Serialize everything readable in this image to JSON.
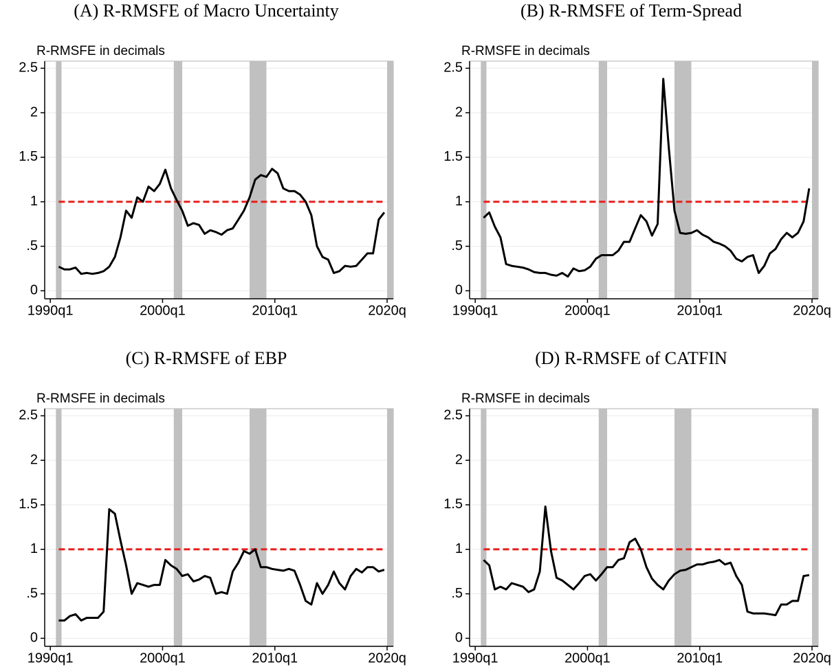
{
  "chart_data": [
    {
      "type": "line",
      "title": "(A) R-RMSFE of Macro Uncertainty",
      "ylabel": "R-RMSFE in decimals",
      "x": [
        1990.75,
        1991.25,
        1991.75,
        1992.25,
        1992.75,
        1993.25,
        1993.75,
        1994.25,
        1994.75,
        1995.25,
        1995.75,
        1996.25,
        1996.75,
        1997.25,
        1997.75,
        1998.25,
        1998.75,
        1999.25,
        1999.75,
        2000.25,
        2000.75,
        2001.25,
        2001.75,
        2002.25,
        2002.75,
        2003.25,
        2003.75,
        2004.25,
        2004.75,
        2005.25,
        2005.75,
        2006.25,
        2006.75,
        2007.25,
        2007.75,
        2008.25,
        2008.75,
        2009.25,
        2009.75,
        2010.25,
        2010.75,
        2011.25,
        2011.75,
        2012.25,
        2012.75,
        2013.25,
        2013.75,
        2014.25,
        2014.75,
        2015.25,
        2015.75,
        2016.25,
        2016.75,
        2017.25,
        2017.75,
        2018.25,
        2018.75,
        2019.25,
        2019.75
      ],
      "values": [
        0.27,
        0.24,
        0.24,
        0.26,
        0.19,
        0.2,
        0.19,
        0.2,
        0.22,
        0.27,
        0.38,
        0.6,
        0.9,
        0.82,
        1.05,
        1.0,
        1.17,
        1.12,
        1.2,
        1.36,
        1.15,
        1.02,
        0.9,
        0.73,
        0.76,
        0.74,
        0.64,
        0.68,
        0.66,
        0.63,
        0.68,
        0.7,
        0.8,
        0.9,
        1.05,
        1.25,
        1.3,
        1.28,
        1.37,
        1.32,
        1.15,
        1.12,
        1.12,
        1.08,
        1.0,
        0.85,
        0.5,
        0.38,
        0.35,
        0.2,
        0.22,
        0.28,
        0.27,
        0.28,
        0.35,
        0.42,
        0.42,
        0.8,
        0.88
      ],
      "color": "#000000",
      "hline": 1,
      "hline_color": "#e8201c",
      "shaded": [
        [
          1990.5,
          1991.0
        ],
        [
          2001.0,
          2001.75
        ],
        [
          2007.75,
          2009.25
        ],
        [
          2020.0,
          2020.55
        ]
      ],
      "shade_color": "#c0c0c0",
      "xlim": [
        1989.5,
        2020.55
      ],
      "ylim": [
        -0.09,
        2.58
      ],
      "xticks": [
        {
          "value": 1990,
          "label": "1990q1"
        },
        {
          "value": 2000,
          "label": "2000q1"
        },
        {
          "value": 2010,
          "label": "2010q1"
        },
        {
          "value": 2020,
          "label": "2020q"
        }
      ],
      "yticks": [
        0,
        {
          "value": 0.5,
          "label": ".5"
        },
        1,
        1.5,
        2,
        2.5
      ],
      "grid": true
    },
    {
      "type": "line",
      "title": "(B) R-RMSFE of Term-Spread",
      "ylabel": "R-RMSFE in decimals",
      "x": [
        1990.75,
        1991.25,
        1991.75,
        1992.25,
        1992.75,
        1993.25,
        1993.75,
        1994.25,
        1994.75,
        1995.25,
        1995.75,
        1996.25,
        1996.75,
        1997.25,
        1997.75,
        1998.25,
        1998.75,
        1999.25,
        1999.75,
        2000.25,
        2000.75,
        2001.25,
        2001.75,
        2002.25,
        2002.75,
        2003.25,
        2003.75,
        2004.25,
        2004.75,
        2005.25,
        2005.75,
        2006.25,
        2006.75,
        2007.25,
        2007.75,
        2008.25,
        2008.75,
        2009.25,
        2009.75,
        2010.25,
        2010.75,
        2011.25,
        2011.75,
        2012.25,
        2012.75,
        2013.25,
        2013.75,
        2014.25,
        2014.75,
        2015.25,
        2015.75,
        2016.25,
        2016.75,
        2017.25,
        2017.75,
        2018.25,
        2018.75,
        2019.25,
        2019.75
      ],
      "values": [
        0.82,
        0.88,
        0.72,
        0.6,
        0.3,
        0.28,
        0.27,
        0.26,
        0.24,
        0.21,
        0.2,
        0.2,
        0.18,
        0.17,
        0.2,
        0.16,
        0.25,
        0.22,
        0.23,
        0.27,
        0.36,
        0.4,
        0.4,
        0.4,
        0.45,
        0.55,
        0.55,
        0.7,
        0.85,
        0.78,
        0.62,
        0.75,
        2.38,
        1.6,
        0.9,
        0.65,
        0.64,
        0.65,
        0.68,
        0.63,
        0.6,
        0.55,
        0.53,
        0.5,
        0.45,
        0.36,
        0.33,
        0.38,
        0.4,
        0.2,
        0.28,
        0.42,
        0.47,
        0.58,
        0.65,
        0.6,
        0.65,
        0.78,
        1.15
      ],
      "color": "#000000",
      "hline": 1,
      "hline_color": "#e8201c",
      "shaded": [
        [
          1990.5,
          1991.0
        ],
        [
          2001.0,
          2001.75
        ],
        [
          2007.75,
          2009.25
        ],
        [
          2020.0,
          2020.55
        ]
      ],
      "shade_color": "#c0c0c0",
      "xlim": [
        1989.5,
        2020.55
      ],
      "ylim": [
        -0.09,
        2.58
      ],
      "xticks": [
        {
          "value": 1990,
          "label": "1990q1"
        },
        {
          "value": 2000,
          "label": "2000q1"
        },
        {
          "value": 2010,
          "label": "2010q1"
        },
        {
          "value": 2020,
          "label": "2020q"
        }
      ],
      "yticks": [
        0,
        {
          "value": 0.5,
          "label": ".5"
        },
        1,
        1.5,
        2,
        2.5
      ],
      "grid": true
    },
    {
      "type": "line",
      "title": "(C) R-RMSFE of EBP",
      "ylabel": "R-RMSFE in decimals",
      "x": [
        1990.75,
        1991.25,
        1991.75,
        1992.25,
        1992.75,
        1993.25,
        1993.75,
        1994.25,
        1994.75,
        1995.25,
        1995.75,
        1996.25,
        1996.75,
        1997.25,
        1997.75,
        1998.25,
        1998.75,
        1999.25,
        1999.75,
        2000.25,
        2000.75,
        2001.25,
        2001.75,
        2002.25,
        2002.75,
        2003.25,
        2003.75,
        2004.25,
        2004.75,
        2005.25,
        2005.75,
        2006.25,
        2006.75,
        2007.25,
        2007.75,
        2008.25,
        2008.75,
        2009.25,
        2009.75,
        2010.25,
        2010.75,
        2011.25,
        2011.75,
        2012.25,
        2012.75,
        2013.25,
        2013.75,
        2014.25,
        2014.75,
        2015.25,
        2015.75,
        2016.25,
        2016.75,
        2017.25,
        2017.75,
        2018.25,
        2018.75,
        2019.25,
        2019.75
      ],
      "values": [
        0.2,
        0.2,
        0.25,
        0.27,
        0.2,
        0.23,
        0.23,
        0.23,
        0.3,
        1.45,
        1.4,
        1.1,
        0.82,
        0.5,
        0.62,
        0.6,
        0.58,
        0.6,
        0.6,
        0.88,
        0.82,
        0.78,
        0.7,
        0.72,
        0.64,
        0.66,
        0.7,
        0.68,
        0.5,
        0.52,
        0.5,
        0.75,
        0.85,
        0.98,
        0.95,
        1.0,
        0.8,
        0.8,
        0.78,
        0.77,
        0.76,
        0.78,
        0.76,
        0.6,
        0.42,
        0.38,
        0.62,
        0.5,
        0.6,
        0.75,
        0.62,
        0.55,
        0.7,
        0.78,
        0.74,
        0.8,
        0.8,
        0.75,
        0.77
      ],
      "color": "#000000",
      "hline": 1,
      "hline_color": "#e8201c",
      "shaded": [
        [
          1990.5,
          1991.0
        ],
        [
          2001.0,
          2001.75
        ],
        [
          2007.75,
          2009.25
        ],
        [
          2020.0,
          2020.55
        ]
      ],
      "shade_color": "#c0c0c0",
      "xlim": [
        1989.5,
        2020.55
      ],
      "ylim": [
        -0.09,
        2.58
      ],
      "xticks": [
        {
          "value": 1990,
          "label": "1990q1"
        },
        {
          "value": 2000,
          "label": "2000q1"
        },
        {
          "value": 2010,
          "label": "2010q1"
        },
        {
          "value": 2020,
          "label": "2020q"
        }
      ],
      "yticks": [
        0,
        {
          "value": 0.5,
          "label": ".5"
        },
        1,
        1.5,
        2,
        2.5
      ],
      "grid": true
    },
    {
      "type": "line",
      "title": "(D) R-RMSFE of CATFIN",
      "ylabel": "R-RMSFE in decimals",
      "x": [
        1990.75,
        1991.25,
        1991.75,
        1992.25,
        1992.75,
        1993.25,
        1993.75,
        1994.25,
        1994.75,
        1995.25,
        1995.75,
        1996.25,
        1996.75,
        1997.25,
        1997.75,
        1998.25,
        1998.75,
        1999.25,
        1999.75,
        2000.25,
        2000.75,
        2001.25,
        2001.75,
        2002.25,
        2002.75,
        2003.25,
        2003.75,
        2004.25,
        2004.75,
        2005.25,
        2005.75,
        2006.25,
        2006.75,
        2007.25,
        2007.75,
        2008.25,
        2008.75,
        2009.25,
        2009.75,
        2010.25,
        2010.75,
        2011.25,
        2011.75,
        2012.25,
        2012.75,
        2013.25,
        2013.75,
        2014.25,
        2014.75,
        2015.25,
        2015.75,
        2016.25,
        2016.75,
        2017.25,
        2017.75,
        2018.25,
        2018.75,
        2019.25,
        2019.75
      ],
      "values": [
        0.88,
        0.82,
        0.55,
        0.58,
        0.55,
        0.62,
        0.6,
        0.58,
        0.52,
        0.55,
        0.75,
        1.48,
        0.98,
        0.68,
        0.65,
        0.6,
        0.55,
        0.62,
        0.7,
        0.72,
        0.65,
        0.72,
        0.8,
        0.8,
        0.88,
        0.9,
        1.08,
        1.12,
        1.0,
        0.8,
        0.67,
        0.6,
        0.55,
        0.65,
        0.72,
        0.76,
        0.77,
        0.8,
        0.83,
        0.83,
        0.85,
        0.86,
        0.88,
        0.83,
        0.85,
        0.7,
        0.6,
        0.3,
        0.28,
        0.28,
        0.28,
        0.27,
        0.26,
        0.38,
        0.38,
        0.42,
        0.42,
        0.7,
        0.71
      ],
      "color": "#000000",
      "hline": 1,
      "hline_color": "#e8201c",
      "shaded": [
        [
          1990.5,
          1991.0
        ],
        [
          2001.0,
          2001.75
        ],
        [
          2007.75,
          2009.25
        ],
        [
          2020.0,
          2020.55
        ]
      ],
      "shade_color": "#c0c0c0",
      "xlim": [
        1989.5,
        2020.55
      ],
      "ylim": [
        -0.09,
        2.58
      ],
      "xticks": [
        {
          "value": 1990,
          "label": "1990q1"
        },
        {
          "value": 2000,
          "label": "2000q1"
        },
        {
          "value": 2010,
          "label": "2010q1"
        },
        {
          "value": 2020,
          "label": "2020q"
        }
      ],
      "yticks": [
        0,
        {
          "value": 0.5,
          "label": ".5"
        },
        1,
        1.5,
        2,
        2.5
      ],
      "grid": true
    }
  ]
}
